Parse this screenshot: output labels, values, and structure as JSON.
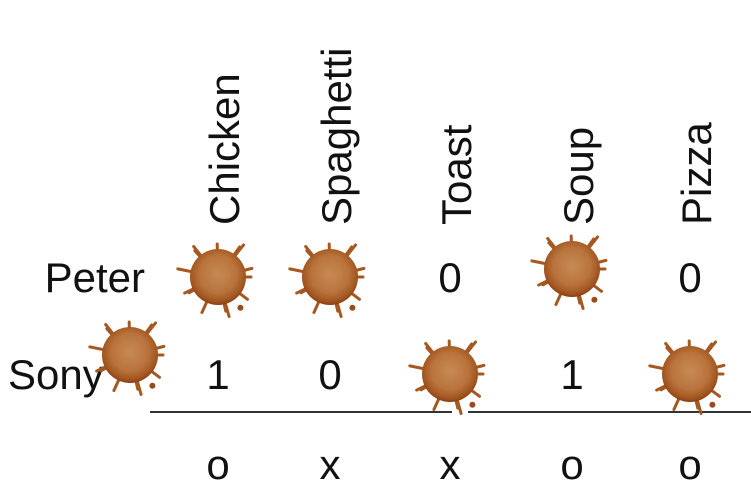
{
  "columns": [
    "Chicken",
    "Spaghetti",
    "Toast",
    "Soup",
    "Pizza"
  ],
  "rows": [
    {
      "name": "Peter",
      "cells": [
        null,
        null,
        0,
        null,
        0
      ]
    },
    {
      "name": "Sony",
      "cells": [
        1,
        0,
        null,
        1,
        null
      ]
    }
  ],
  "footer": [
    "o",
    "x",
    "x",
    "o",
    "o"
  ]
}
